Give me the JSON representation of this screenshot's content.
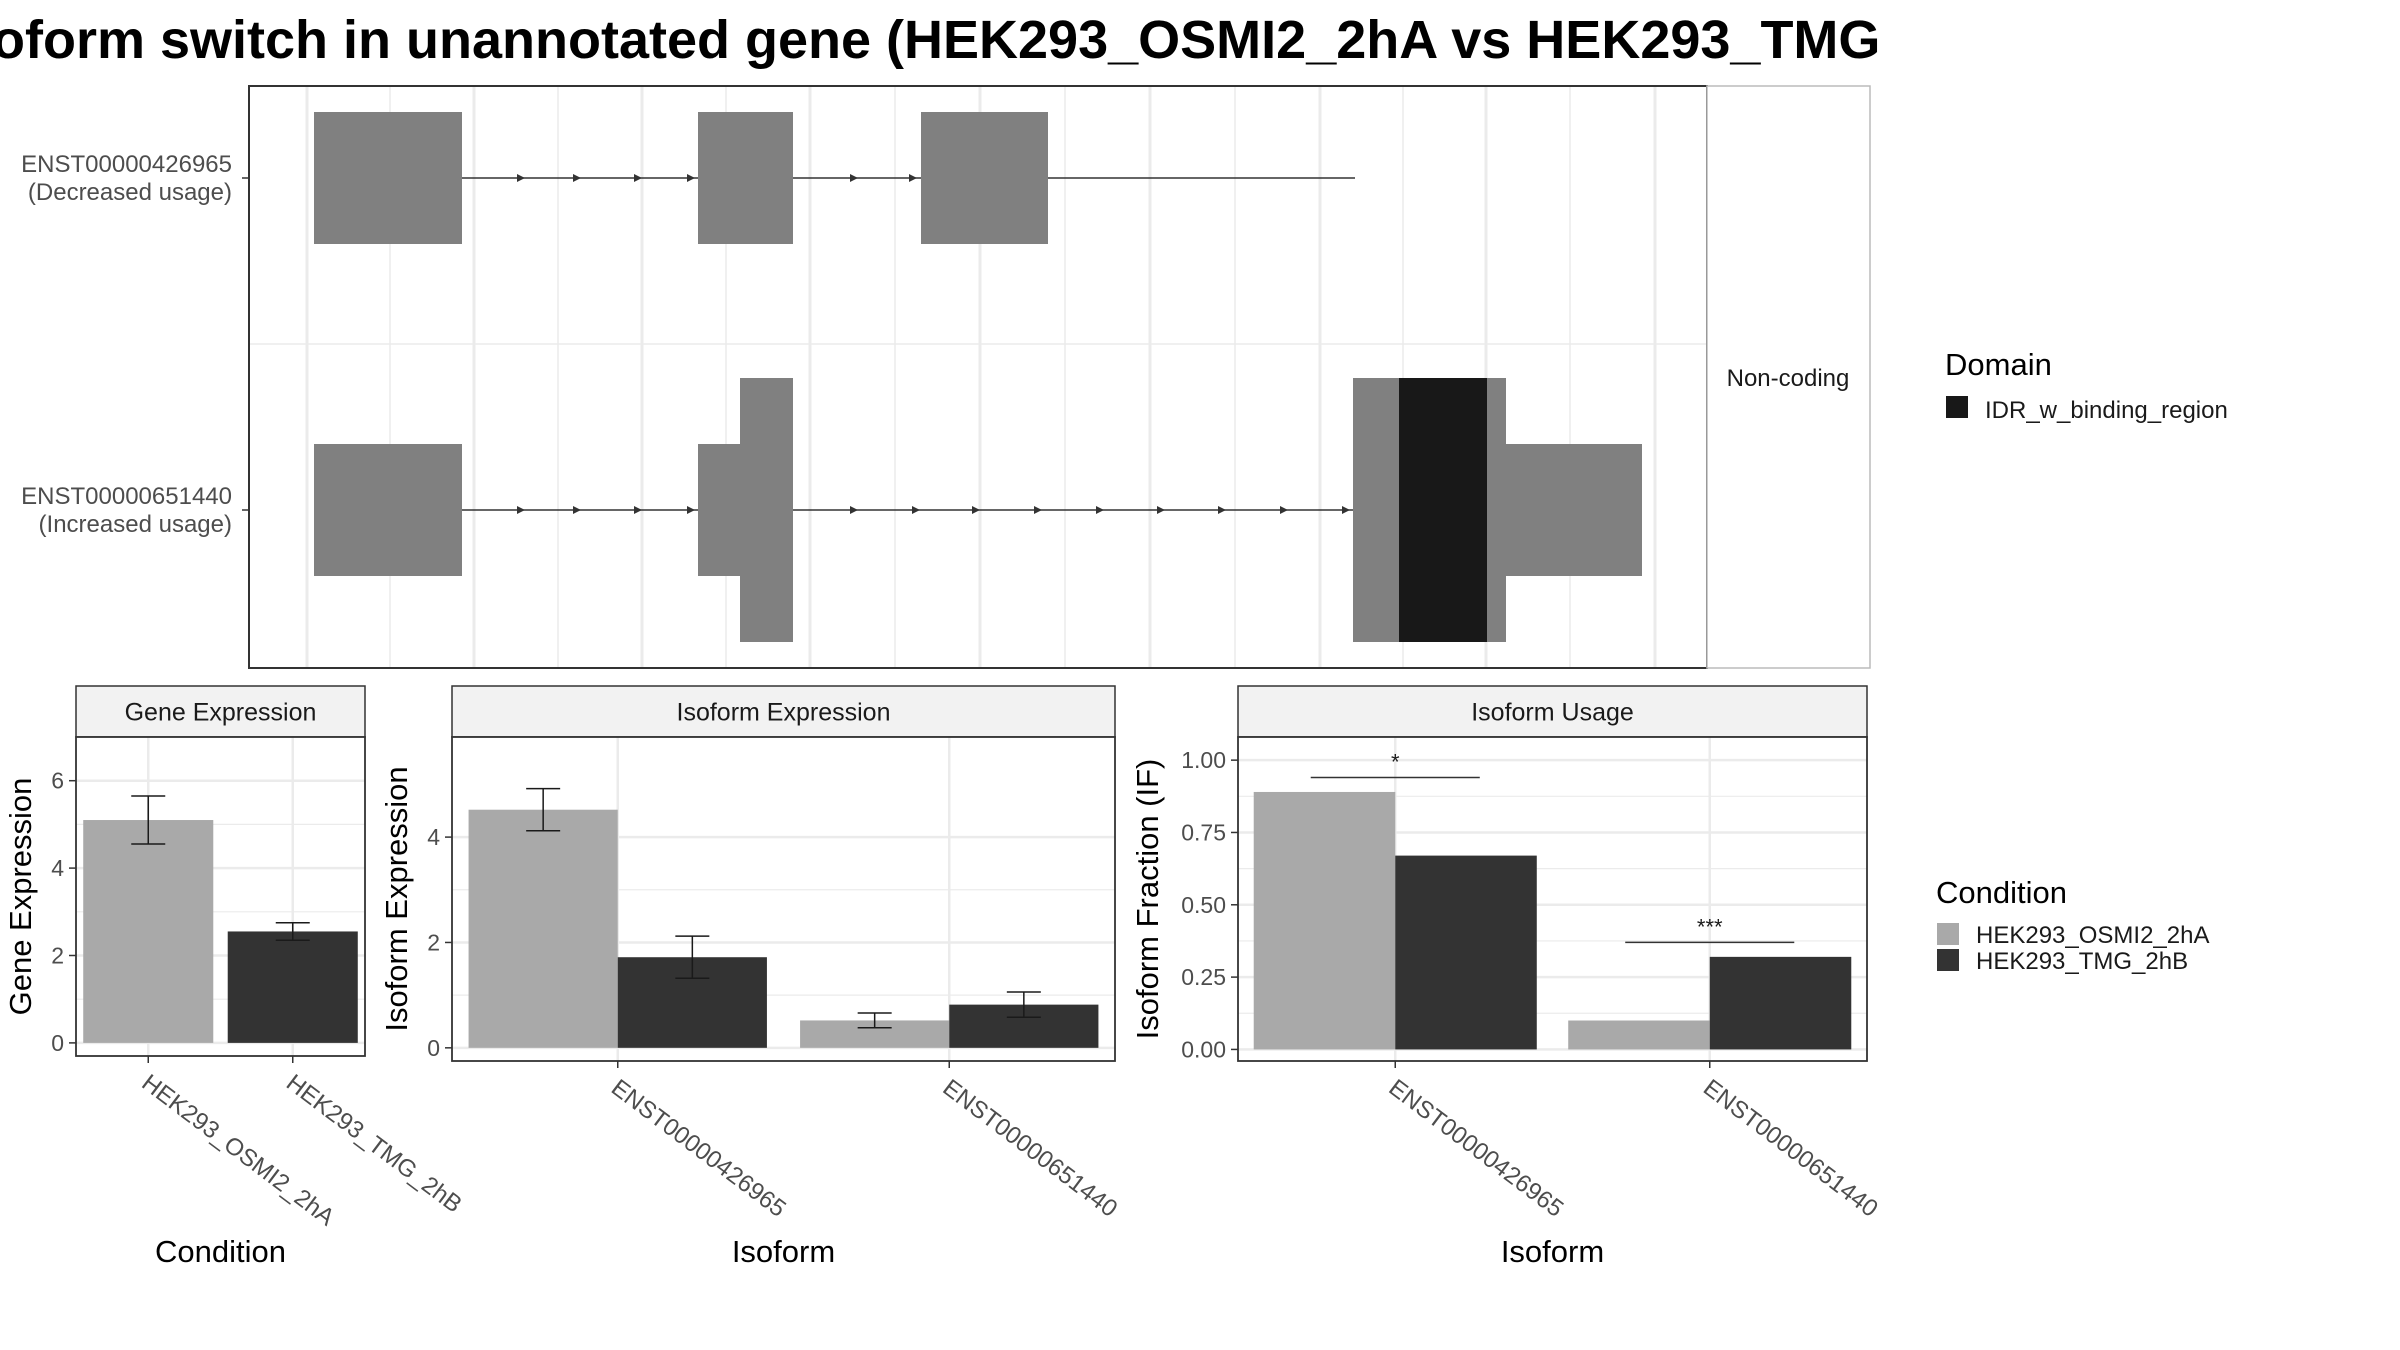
{
  "title": "oform switch in unannotated gene (HEK293_OSMI2_2hA vs HEK293_TMG",
  "colors": {
    "cond_a": "#A9A9A9",
    "cond_b": "#333333",
    "exon": "#808080",
    "domain": "#181818",
    "grid": "#EBEBEB",
    "strip": "#F2F2F2"
  },
  "chart_data": [
    {
      "type": "gene-structure",
      "strip_label": "Non-coding",
      "isoforms": [
        {
          "id": "ENST00000426965",
          "usage": "(Decreased usage)"
        },
        {
          "id": "ENST00000651440",
          "usage": "(Increased usage)"
        }
      ]
    },
    {
      "type": "bar",
      "panel": "Gene Expression",
      "xlabel": "Condition",
      "ylabel": "Gene Expression",
      "ylim": [
        -0.3,
        7.0
      ],
      "yticks": [
        {
          "v": 0,
          "label": "0"
        },
        {
          "v": 2,
          "label": "2"
        },
        {
          "v": 4,
          "label": "4"
        },
        {
          "v": 6,
          "label": "6"
        }
      ],
      "categories": [
        "HEK293_OSMI2_2hA",
        "HEK293_TMG_2hB"
      ],
      "bars": [
        {
          "value": 5.1,
          "err_low": 4.55,
          "err_high": 5.65
        },
        {
          "value": 2.55,
          "err_low": 2.35,
          "err_high": 2.75
        }
      ]
    },
    {
      "type": "bar",
      "panel": "Isoform Expression",
      "xlabel": "Isoform",
      "ylabel": "Isoform Expression",
      "ylim": [
        -0.25,
        5.9
      ],
      "yticks": [
        {
          "v": 0,
          "label": "0"
        },
        {
          "v": 2,
          "label": "2"
        },
        {
          "v": 4,
          "label": "4"
        }
      ],
      "categories": [
        "ENST00000426965",
        "ENST00000651440"
      ],
      "series": [
        {
          "name": "HEK293_OSMI2_2hA",
          "values": [
            4.52,
            0.52
          ],
          "err_low": [
            4.12,
            0.38
          ],
          "err_high": [
            4.92,
            0.66
          ]
        },
        {
          "name": "HEK293_TMG_2hB",
          "values": [
            1.72,
            0.82
          ],
          "err_low": [
            1.32,
            0.58
          ],
          "err_high": [
            2.12,
            1.06
          ]
        }
      ]
    },
    {
      "type": "bar",
      "panel": "Isoform Usage",
      "xlabel": "Isoform",
      "ylabel": "Isoform Fraction (IF)",
      "ylim": [
        -0.04,
        1.08
      ],
      "yticks": [
        {
          "v": 0,
          "label": "0.00"
        },
        {
          "v": 0.25,
          "label": "0.25"
        },
        {
          "v": 0.5,
          "label": "0.50"
        },
        {
          "v": 0.75,
          "label": "0.75"
        },
        {
          "v": 1.0,
          "label": "1.00"
        }
      ],
      "categories": [
        "ENST00000426965",
        "ENST00000651440"
      ],
      "series": [
        {
          "name": "HEK293_OSMI2_2hA",
          "values": [
            0.89,
            0.1
          ]
        },
        {
          "name": "HEK293_TMG_2hB",
          "values": [
            0.67,
            0.32
          ]
        }
      ],
      "significance": [
        {
          "label": "*",
          "y": 0.94
        },
        {
          "label": "***",
          "y": 0.37
        }
      ]
    }
  ],
  "legend_domain": {
    "title": "Domain",
    "items": [
      "IDR_w_binding_region"
    ]
  },
  "legend_condition": {
    "title": "Condition",
    "items": [
      "HEK293_OSMI2_2hA",
      "HEK293_TMG_2hB"
    ]
  }
}
